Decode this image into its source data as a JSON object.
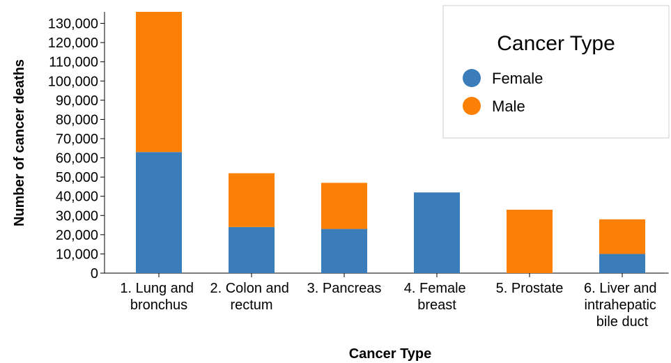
{
  "chart_data": {
    "type": "stacked_bar",
    "x_label": "Cancer Type",
    "y_label": "Number of cancer deaths",
    "legend_title": "Cancer Type",
    "legend_position": "top-right",
    "categories": [
      "1. Lung and bronchus",
      "2. Colon and rectum",
      "3. Pancreas",
      "4. Female breast",
      "5. Prostate",
      "6. Liver and intrahepatic bile duct"
    ],
    "series": [
      {
        "name": "Female",
        "color": "#3a7dba",
        "values": [
          63000,
          24000,
          23000,
          42000,
          0,
          10000
        ]
      },
      {
        "name": "Male",
        "color": "#fc8006",
        "values": [
          73000,
          28000,
          24000,
          0,
          33000,
          18000
        ]
      }
    ],
    "ylim": [
      0,
      136000
    ],
    "yticks": [
      0,
      {
        "value": 10000,
        "label": "10,000"
      },
      {
        "value": 20000,
        "label": "20,000"
      },
      {
        "value": 30000,
        "label": "30,000"
      },
      {
        "value": 40000,
        "label": "40,000"
      },
      {
        "value": 50000,
        "label": "50,000"
      },
      {
        "value": 60000,
        "label": "60,000"
      },
      {
        "value": 70000,
        "label": "70,000"
      },
      {
        "value": 80000,
        "label": "80,000"
      },
      {
        "value": 90000,
        "label": "90,000"
      },
      {
        "value": 100000,
        "label": "100,000"
      },
      {
        "value": 110000,
        "label": "110,000"
      },
      {
        "value": 120000,
        "label": "120,000"
      },
      {
        "value": 130000,
        "label": "130,000"
      }
    ]
  }
}
